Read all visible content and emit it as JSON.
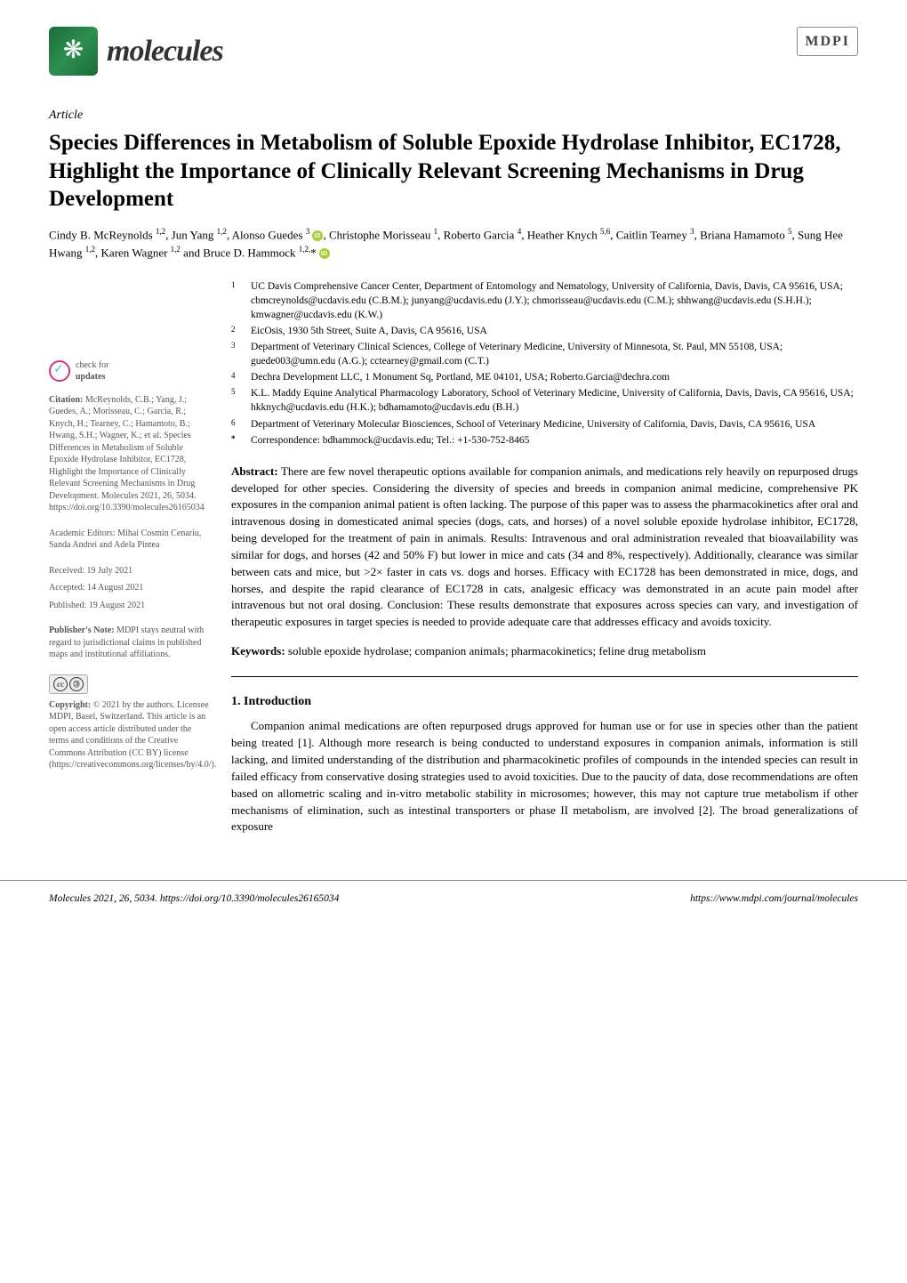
{
  "journal": {
    "name": "molecules",
    "publisher": "MDPI"
  },
  "article_type": "Article",
  "title": "Species Differences in Metabolism of Soluble Epoxide Hydrolase Inhibitor, EC1728, Highlight the Importance of Clinically Relevant Screening Mechanisms in Drug Development",
  "authors_html": "Cindy B. McReynolds <sup>1,2</sup>, Jun Yang <sup>1,2</sup>, Alonso Guedes <sup>3</sup> <span class='orcid' data-name='orcid-icon' data-interactable='false'></span>, Christophe Morisseau <sup>1</sup>, Roberto Garcia <sup>4</sup>, Heather Knych <sup>5,6</sup>, Caitlin Tearney <sup>3</sup>, Briana Hamamoto <sup>5</sup>, Sung Hee Hwang <sup>1,2</sup>, Karen Wagner <sup>1,2</sup> and Bruce D. Hammock <sup>1,2,</sup>* <span class='orcid' data-name='orcid-icon' data-interactable='false'></span>",
  "affiliations": [
    {
      "num": "1",
      "text": "UC Davis Comprehensive Cancer Center, Department of Entomology and Nematology, University of California, Davis, Davis, CA 95616, USA; cbmcreynolds@ucdavis.edu (C.B.M.); junyang@ucdavis.edu (J.Y.); chmorisseau@ucdavis.edu (C.M.); shhwang@ucdavis.edu (S.H.H.); kmwagner@ucdavis.edu (K.W.)"
    },
    {
      "num": "2",
      "text": "EicOsis, 1930 5th Street, Suite A, Davis, CA 95616, USA"
    },
    {
      "num": "3",
      "text": "Department of Veterinary Clinical Sciences, College of Veterinary Medicine, University of Minnesota, St. Paul, MN 55108, USA; guede003@umn.edu (A.G.); cctearney@gmail.com (C.T.)"
    },
    {
      "num": "4",
      "text": "Dechra Development LLC, 1 Monument Sq, Portland, ME 04101, USA; Roberto.Garcia@dechra.com"
    },
    {
      "num": "5",
      "text": "K.L. Maddy Equine Analytical Pharmacology Laboratory, School of Veterinary Medicine, University of California, Davis, Davis, CA 95616, USA; hkknych@ucdavis.edu (H.K.); bdhamamoto@ucdavis.edu (B.H.)"
    },
    {
      "num": "6",
      "text": "Department of Veterinary Molecular Biosciences, School of Veterinary Medicine, University of California, Davis, Davis, CA 95616, USA"
    },
    {
      "num": "*",
      "text": "Correspondence: bdhammock@ucdavis.edu; Tel.: +1-530-752-8465"
    }
  ],
  "sidebar": {
    "check_updates": "check for updates",
    "citation_label": "Citation:",
    "citation": "McReynolds, C.B.; Yang, J.; Guedes, A.; Morisseau, C.; Garcia, R.; Knych, H.; Tearney, C.; Hamamoto, B.; Hwang, S.H.; Wagner, K.; et al. Species Differences in Metabolism of Soluble Epoxide Hydrolase Inhibitor, EC1728, Highlight the Importance of Clinically Relevant Screening Mechanisms in Drug Development. Molecules 2021, 26, 5034. https://doi.org/10.3390/molecules26165034",
    "editors_label": "Academic Editors:",
    "editors": "Mihai Cosmin Cenariu, Sanda Andrei and Adela Pintea",
    "received_label": "Received:",
    "received": "19 July 2021",
    "accepted_label": "Accepted:",
    "accepted": "14 August 2021",
    "published_label": "Published:",
    "published": "19 August 2021",
    "publishers_note_label": "Publisher's Note:",
    "publishers_note": "MDPI stays neutral with regard to jurisdictional claims in published maps and institutional affiliations.",
    "copyright_label": "Copyright:",
    "copyright": "© 2021 by the authors. Licensee MDPI, Basel, Switzerland. This article is an open access article distributed under the terms and conditions of the Creative Commons Attribution (CC BY) license (https://creativecommons.org/licenses/by/4.0/)."
  },
  "abstract": {
    "label": "Abstract:",
    "text": "There are few novel therapeutic options available for companion animals, and medications rely heavily on repurposed drugs developed for other species. Considering the diversity of species and breeds in companion animal medicine, comprehensive PK exposures in the companion animal patient is often lacking. The purpose of this paper was to assess the pharmacokinetics after oral and intravenous dosing in domesticated animal species (dogs, cats, and horses) of a novel soluble epoxide hydrolase inhibitor, EC1728, being developed for the treatment of pain in animals. Results: Intravenous and oral administration revealed that bioavailability was similar for dogs, and horses (42 and 50% F) but lower in mice and cats (34 and 8%, respectively). Additionally, clearance was similar between cats and mice, but >2× faster in cats vs. dogs and horses. Efficacy with EC1728 has been demonstrated in mice, dogs, and horses, and despite the rapid clearance of EC1728 in cats, analgesic efficacy was demonstrated in an acute pain model after intravenous but not oral dosing. Conclusion: These results demonstrate that exposures across species can vary, and investigation of therapeutic exposures in target species is needed to provide adequate care that addresses efficacy and avoids toxicity."
  },
  "keywords": {
    "label": "Keywords:",
    "text": "soluble epoxide hydrolase; companion animals; pharmacokinetics; feline drug metabolism"
  },
  "sections": {
    "intro_heading": "1. Introduction",
    "intro_body": "Companion animal medications are often repurposed drugs approved for human use or for use in species other than the patient being treated [1]. Although more research is being conducted to understand exposures in companion animals, information is still lacking, and limited understanding of the distribution and pharmacokinetic profiles of compounds in the intended species can result in failed efficacy from conservative dosing strategies used to avoid toxicities. Due to the paucity of data, dose recommendations are often based on allometric scaling and in-vitro metabolic stability in microsomes; however, this may not capture true metabolism if other mechanisms of elimination, such as intestinal transporters or phase II metabolism, are involved [2]. The broad generalizations of exposure"
  },
  "footer": {
    "left": "Molecules 2021, 26, 5034. https://doi.org/10.3390/molecules26165034",
    "right": "https://www.mdpi.com/journal/molecules"
  },
  "colors": {
    "logo_green_dark": "#1a6b3a",
    "logo_green_light": "#2d8f4f",
    "orcid_green": "#a6ce39",
    "check_pink": "#d63384",
    "check_blue": "#5bc0de",
    "text": "#000000",
    "sidebar_text": "#555555",
    "background": "#ffffff"
  }
}
